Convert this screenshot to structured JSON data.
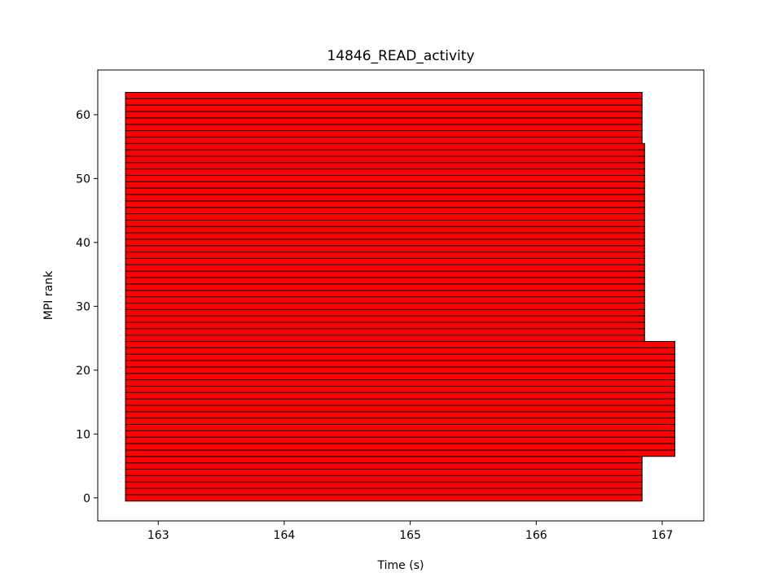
{
  "chart_data": {
    "type": "bar",
    "subtype": "horizontal-segmented-timeline",
    "title": "14846_READ_activity",
    "xlabel": "Time (s)",
    "ylabel": "MPI rank",
    "xlim": [
      162.52,
      167.33
    ],
    "ylim": [
      -3.6,
      67.0
    ],
    "xticks": [
      163,
      164,
      165,
      166,
      167
    ],
    "yticks": [
      0,
      10,
      20,
      30,
      40,
      50,
      60
    ],
    "grid": false,
    "legend": "none",
    "bar_color": "#ff0000",
    "edge_color": "#000000",
    "series": [
      {
        "group": "ranks 0-6",
        "ranks": [
          0,
          6
        ],
        "start": 162.74,
        "end": 166.84
      },
      {
        "group": "ranks 7-24",
        "ranks": [
          7,
          24
        ],
        "start": 162.74,
        "end": 167.1
      },
      {
        "group": "ranks 25-55",
        "ranks": [
          25,
          55
        ],
        "start": 162.74,
        "end": 166.86
      },
      {
        "group": "ranks 56-63",
        "ranks": [
          56,
          63
        ],
        "start": 162.74,
        "end": 166.84
      }
    ]
  }
}
